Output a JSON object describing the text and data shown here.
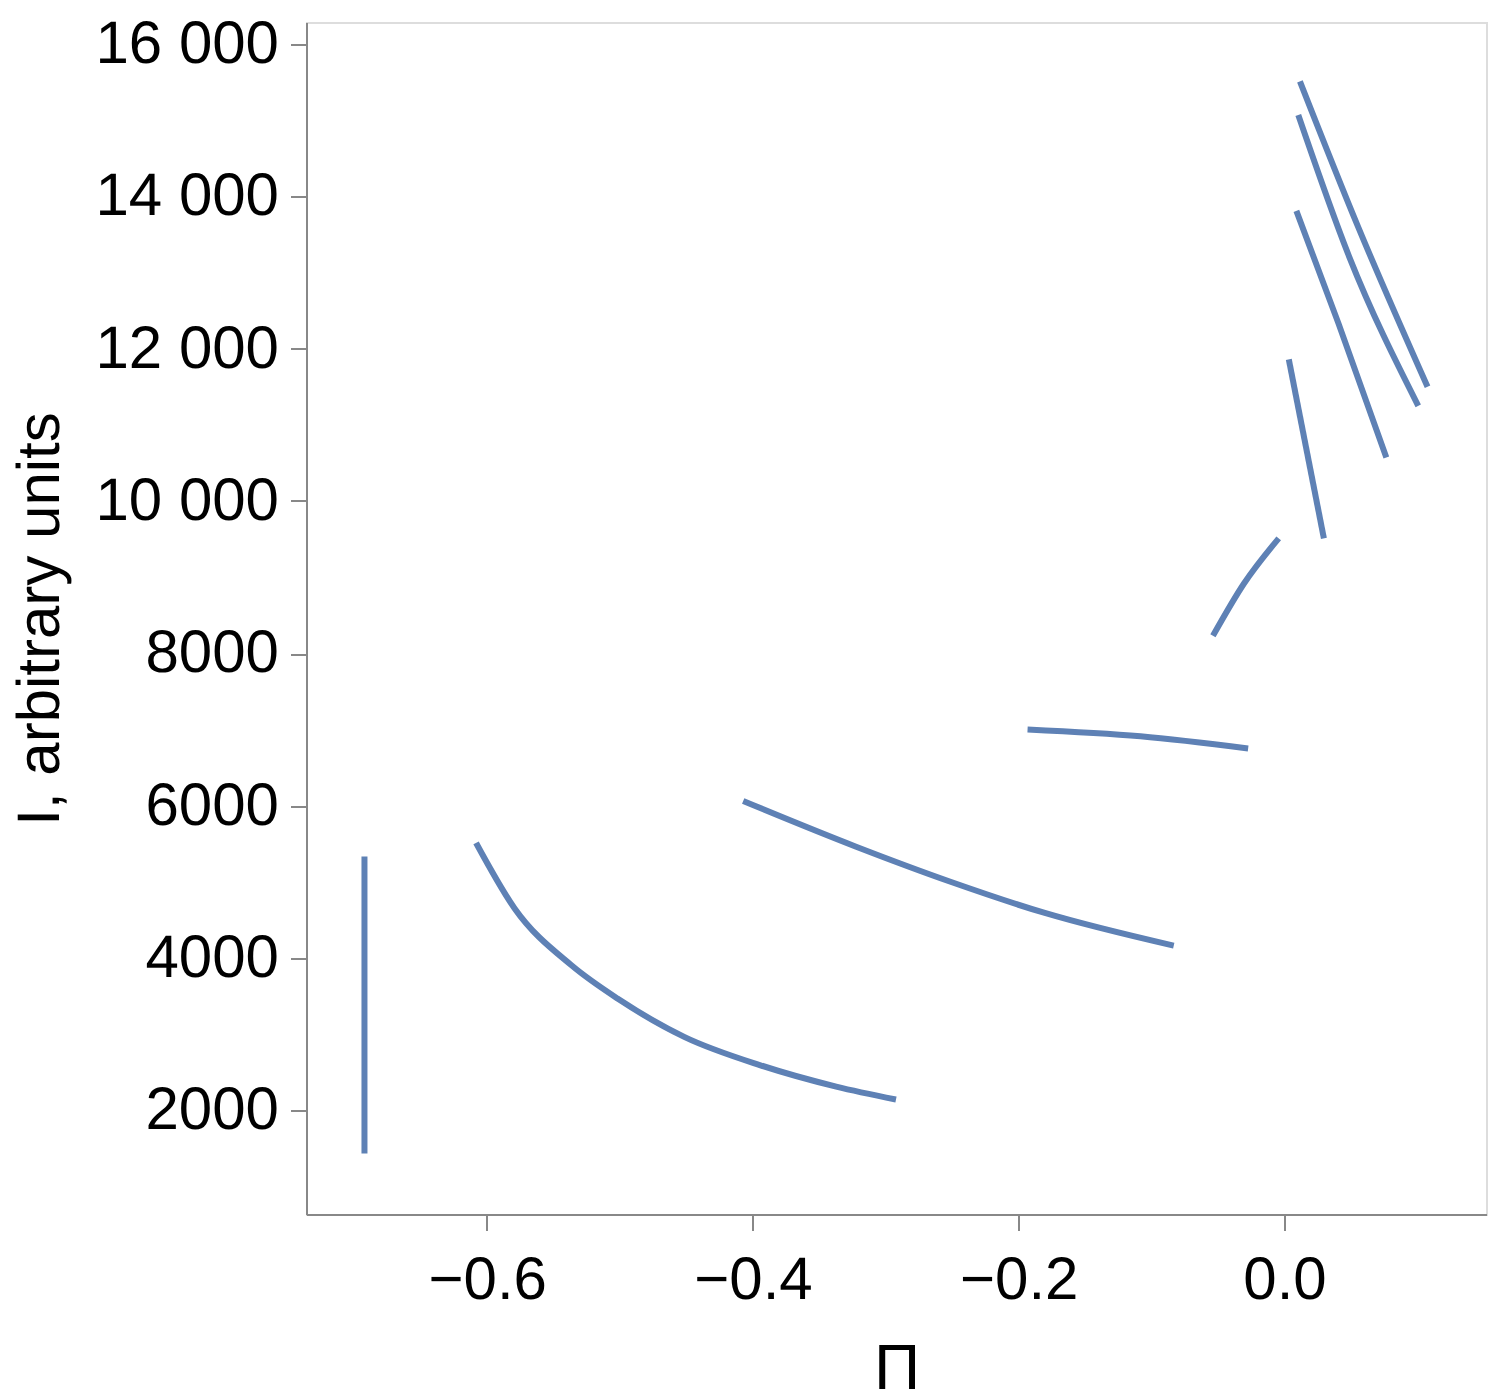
{
  "chart_data": {
    "type": "line",
    "xlabel": "Π",
    "ylabel": "I, arbitrary units",
    "xlim": [
      -0.736,
      0.152
    ],
    "ylim": [
      637,
      16290
    ],
    "xticks": [
      {
        "value": -0.6,
        "label": "−0.6"
      },
      {
        "value": -0.4,
        "label": "−0.4"
      },
      {
        "value": -0.2,
        "label": "−0.2"
      },
      {
        "value": 0,
        "label": "0.0"
      }
    ],
    "yticks": [
      2000,
      4000,
      6000,
      8000,
      {
        "value": 10000,
        "label": "10 000"
      },
      {
        "value": 12000,
        "label": "12 000"
      },
      {
        "value": 14000,
        "label": "14 000"
      },
      {
        "value": 16000,
        "label": "16 000"
      }
    ],
    "grid": false,
    "marker": "none",
    "line_style": "solid",
    "series": [
      {
        "color": "#5e81b5",
        "x": [
          -0.692,
          -0.692
        ],
        "values": [
          1430,
          5330
        ]
      },
      {
        "color": "#5e81b5",
        "x": [
          -0.608,
          -0.579,
          -0.536,
          -0.501,
          -0.451,
          -0.394,
          -0.337,
          -0.292
        ],
        "values": [
          5510,
          4650,
          3900,
          3460,
          2960,
          2590,
          2310,
          2140
        ]
      },
      {
        "color": "#5e81b5",
        "x": [
          -0.407,
          -0.322,
          -0.251,
          -0.18,
          -0.083
        ],
        "values": [
          6060,
          5460,
          5000,
          4590,
          4160
        ]
      },
      {
        "color": "#5e81b5",
        "x": [
          -0.193,
          -0.108,
          -0.027
        ],
        "values": [
          7000,
          6910,
          6750
        ]
      },
      {
        "color": "#5e81b5",
        "x": [
          -0.0535,
          -0.03,
          -0.004
        ],
        "values": [
          8230,
          8920,
          9510
        ]
      },
      {
        "color": "#5e81b5",
        "x": [
          0.0036,
          0.03
        ],
        "values": [
          11860,
          9510
        ]
      },
      {
        "color": "#5e81b5",
        "x": [
          0.0093,
          0.041,
          0.077
        ],
        "values": [
          13810,
          12330,
          10570
        ]
      },
      {
        "color": "#5e81b5",
        "x": [
          0.0107,
          0.049,
          0.101
        ],
        "values": [
          15070,
          13210,
          11250
        ]
      },
      {
        "color": "#5e81b5",
        "x": [
          0.012,
          0.056,
          0.108
        ],
        "values": [
          15510,
          13590,
          11500
        ]
      }
    ]
  }
}
